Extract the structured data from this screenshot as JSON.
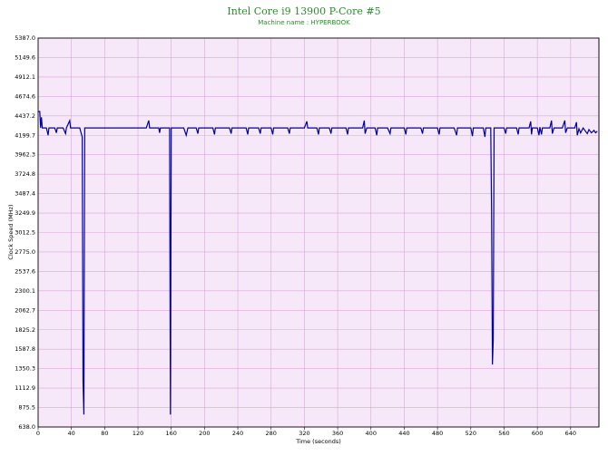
{
  "chart_data": {
    "type": "line",
    "title": "Intel Core i9 13900 P-Core #5",
    "subtitle": "Machine name : HYPERBOOK",
    "x_label": "Time (seconds)",
    "y_label": "Clock Speed (MHz)",
    "xlim": [
      0,
      674
    ],
    "ylim": [
      638,
      5387
    ],
    "xticks": [
      0,
      40,
      80,
      120,
      160,
      200,
      240,
      280,
      320,
      360,
      400,
      440,
      480,
      520,
      560,
      600,
      640
    ],
    "yticks": [
      {
        "value": 638,
        "label": "638.0"
      },
      875.5,
      1112.9,
      1350.3,
      1587.8,
      1825.2,
      2062.7,
      2300.1,
      2537.6,
      {
        "value": 2775,
        "label": "2775.0"
      },
      3012.5,
      3249.9,
      3487.4,
      3724.8,
      3962.3,
      4199.7,
      4437.2,
      4674.6,
      4912.1,
      5149.6,
      {
        "value": 5387,
        "label": "5387.0"
      }
    ],
    "grid": true,
    "background": "#f7e8f9",
    "grid_color": "#d9a6da",
    "x": [
      0,
      2,
      3,
      4,
      5,
      10,
      12,
      13,
      20,
      22,
      23,
      30,
      33,
      34,
      38,
      39,
      50,
      53,
      54,
      55,
      56,
      70,
      100,
      130,
      133,
      134,
      145,
      146,
      147,
      158,
      159,
      160,
      175,
      178,
      180,
      190,
      192,
      193,
      210,
      212,
      213,
      230,
      232,
      233,
      250,
      252,
      253,
      265,
      267,
      268,
      280,
      282,
      283,
      300,
      302,
      303,
      320,
      323,
      324,
      335,
      337,
      338,
      350,
      352,
      353,
      370,
      372,
      373,
      390,
      392,
      393,
      395,
      405,
      407,
      408,
      420,
      423,
      424,
      440,
      442,
      443,
      460,
      462,
      463,
      480,
      482,
      483,
      500,
      503,
      504,
      520,
      522,
      523,
      535,
      537,
      538,
      544,
      545,
      546,
      547,
      548,
      560,
      562,
      563,
      575,
      577,
      578,
      590,
      592,
      593,
      594,
      600,
      602,
      603,
      605,
      606,
      615,
      617,
      618,
      620,
      630,
      633,
      634,
      636,
      645,
      647,
      648,
      650,
      652,
      655,
      660,
      662,
      665,
      668,
      670,
      672
    ],
    "series": [
      {
        "name": "Clock Speed",
        "color": "#0000a0",
        "values": [
          4490,
          4490,
          4290,
          4420,
          4290,
          4290,
          4200,
          4290,
          4290,
          4230,
          4290,
          4290,
          4220,
          4290,
          4380,
          4290,
          4290,
          4180,
          1190,
          790,
          4290,
          4290,
          4290,
          4290,
          4380,
          4290,
          4290,
          4230,
          4290,
          4290,
          790,
          4290,
          4290,
          4200,
          4290,
          4290,
          4220,
          4290,
          4290,
          4210,
          4290,
          4290,
          4220,
          4290,
          4290,
          4210,
          4290,
          4290,
          4220,
          4290,
          4290,
          4210,
          4290,
          4290,
          4220,
          4290,
          4290,
          4370,
          4290,
          4290,
          4210,
          4290,
          4290,
          4220,
          4290,
          4290,
          4210,
          4290,
          4290,
          4380,
          4220,
          4290,
          4290,
          4200,
          4290,
          4290,
          4220,
          4290,
          4290,
          4210,
          4290,
          4290,
          4220,
          4290,
          4290,
          4210,
          4290,
          4290,
          4200,
          4290,
          4290,
          4190,
          4290,
          4290,
          4180,
          4290,
          4290,
          3260,
          1400,
          1700,
          4290,
          4290,
          4220,
          4290,
          4290,
          4210,
          4290,
          4290,
          4370,
          4210,
          4290,
          4290,
          4200,
          4300,
          4210,
          4290,
          4290,
          4380,
          4220,
          4290,
          4290,
          4380,
          4230,
          4290,
          4290,
          4360,
          4200,
          4280,
          4230,
          4290,
          4220,
          4270,
          4230,
          4260,
          4230,
          4250
        ]
      }
    ]
  }
}
